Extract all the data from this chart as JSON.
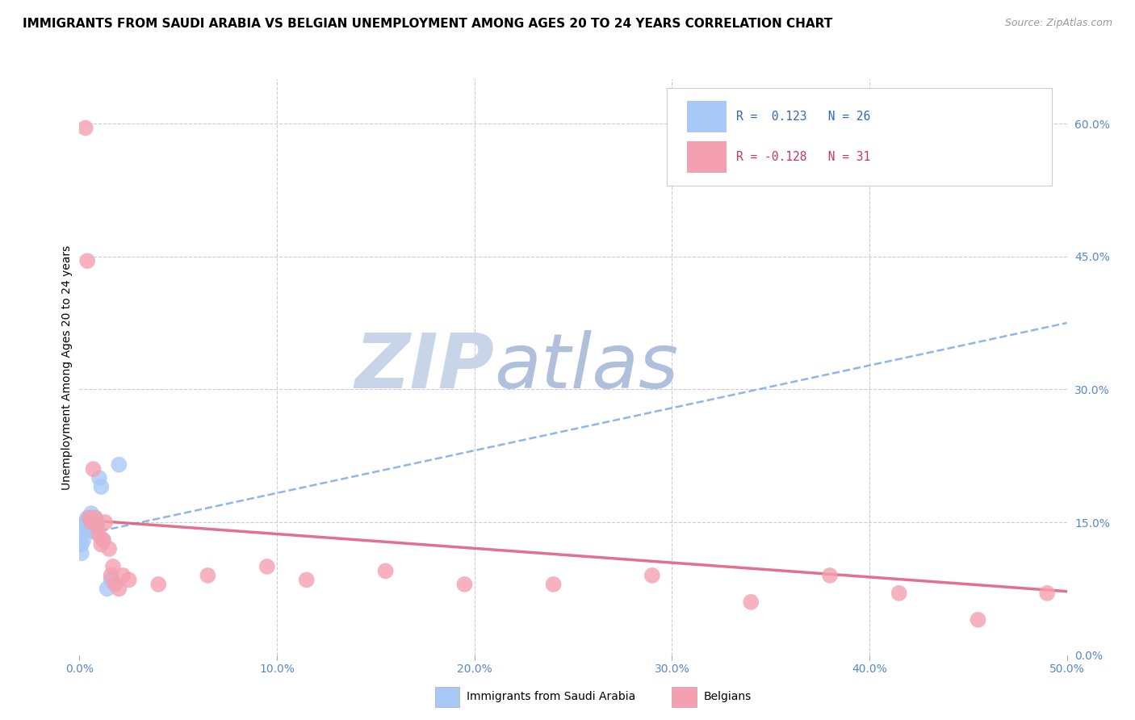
{
  "title": "IMMIGRANTS FROM SAUDI ARABIA VS BELGIAN UNEMPLOYMENT AMONG AGES 20 TO 24 YEARS CORRELATION CHART",
  "source": "Source: ZipAtlas.com",
  "ylabel": "Unemployment Among Ages 20 to 24 years",
  "xlim": [
    0.0,
    0.5
  ],
  "ylim": [
    0.0,
    0.65
  ],
  "blue_color": "#a8c8f8",
  "pink_color": "#f4a0b0",
  "blue_line_color": "#7aaae8",
  "pink_line_color": "#e06080",
  "watermark_zip": "ZIP",
  "watermark_atlas": "atlas",
  "watermark_color": "#c8d4e8",
  "blue_line_x": [
    0.0,
    0.5
  ],
  "blue_line_y": [
    0.135,
    0.375
  ],
  "pink_line_x": [
    0.0,
    0.5
  ],
  "pink_line_y": [
    0.153,
    0.072
  ],
  "blue_scatter_x": [
    0.001,
    0.001,
    0.002,
    0.002,
    0.003,
    0.003,
    0.004,
    0.004,
    0.004,
    0.005,
    0.005,
    0.005,
    0.006,
    0.006,
    0.006,
    0.007,
    0.007,
    0.008,
    0.008,
    0.009,
    0.01,
    0.011,
    0.012,
    0.014,
    0.016,
    0.02
  ],
  "blue_scatter_y": [
    0.115,
    0.125,
    0.13,
    0.14,
    0.145,
    0.15,
    0.145,
    0.15,
    0.155,
    0.145,
    0.15,
    0.155,
    0.14,
    0.15,
    0.16,
    0.145,
    0.155,
    0.14,
    0.155,
    0.15,
    0.2,
    0.19,
    0.13,
    0.075,
    0.085,
    0.215
  ],
  "pink_scatter_x": [
    0.003,
    0.004,
    0.005,
    0.006,
    0.007,
    0.008,
    0.009,
    0.01,
    0.011,
    0.012,
    0.013,
    0.015,
    0.016,
    0.017,
    0.018,
    0.02,
    0.022,
    0.025,
    0.04,
    0.065,
    0.095,
    0.115,
    0.155,
    0.195,
    0.24,
    0.29,
    0.34,
    0.38,
    0.415,
    0.455,
    0.49
  ],
  "pink_scatter_y": [
    0.595,
    0.445,
    0.155,
    0.15,
    0.21,
    0.155,
    0.145,
    0.135,
    0.125,
    0.13,
    0.15,
    0.12,
    0.09,
    0.1,
    0.08,
    0.075,
    0.09,
    0.085,
    0.08,
    0.09,
    0.1,
    0.085,
    0.095,
    0.08,
    0.08,
    0.09,
    0.06,
    0.09,
    0.07,
    0.04,
    0.07
  ]
}
